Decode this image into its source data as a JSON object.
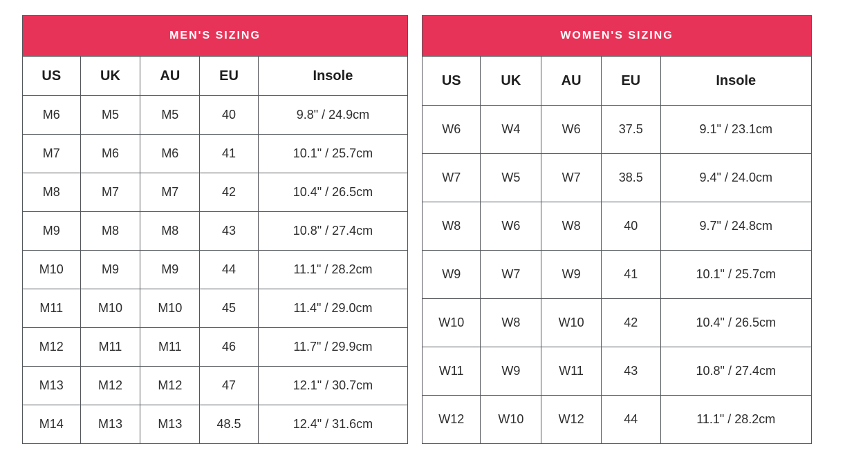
{
  "colors": {
    "accent": "#e83358",
    "border": "#53565a",
    "title_text": "#ffffff",
    "cell_text": "#2d2d2d"
  },
  "tables": [
    {
      "id": "mens",
      "title": "MEN'S SIZING",
      "columns": [
        "US",
        "UK",
        "AU",
        "EU",
        "Insole"
      ],
      "rows": [
        [
          "M6",
          "M5",
          "M5",
          "40",
          "9.8\" / 24.9cm"
        ],
        [
          "M7",
          "M6",
          "M6",
          "41",
          "10.1\" / 25.7cm"
        ],
        [
          "M8",
          "M7",
          "M7",
          "42",
          "10.4\" / 26.5cm"
        ],
        [
          "M9",
          "M8",
          "M8",
          "43",
          "10.8\" / 27.4cm"
        ],
        [
          "M10",
          "M9",
          "M9",
          "44",
          "11.1\" / 28.2cm"
        ],
        [
          "M11",
          "M10",
          "M10",
          "45",
          "11.4\" / 29.0cm"
        ],
        [
          "M12",
          "M11",
          "M11",
          "46",
          "11.7\" / 29.9cm"
        ],
        [
          "M13",
          "M12",
          "M12",
          "47",
          "12.1\" / 30.7cm"
        ],
        [
          "M14",
          "M13",
          "M13",
          "48.5",
          "12.4\" / 31.6cm"
        ]
      ]
    },
    {
      "id": "womens",
      "title": "WOMEN'S SIZING",
      "columns": [
        "US",
        "UK",
        "AU",
        "EU",
        "Insole"
      ],
      "rows": [
        [
          "W6",
          "W4",
          "W6",
          "37.5",
          "9.1\" / 23.1cm"
        ],
        [
          "W7",
          "W5",
          "W7",
          "38.5",
          "9.4\" / 24.0cm"
        ],
        [
          "W8",
          "W6",
          "W8",
          "40",
          "9.7\" / 24.8cm"
        ],
        [
          "W9",
          "W7",
          "W9",
          "41",
          "10.1\" / 25.7cm"
        ],
        [
          "W10",
          "W8",
          "W10",
          "42",
          "10.4\" / 26.5cm"
        ],
        [
          "W11",
          "W9",
          "W11",
          "43",
          "10.8\" / 27.4cm"
        ],
        [
          "W12",
          "W10",
          "W12",
          "44",
          "11.1\" / 28.2cm"
        ]
      ]
    }
  ]
}
